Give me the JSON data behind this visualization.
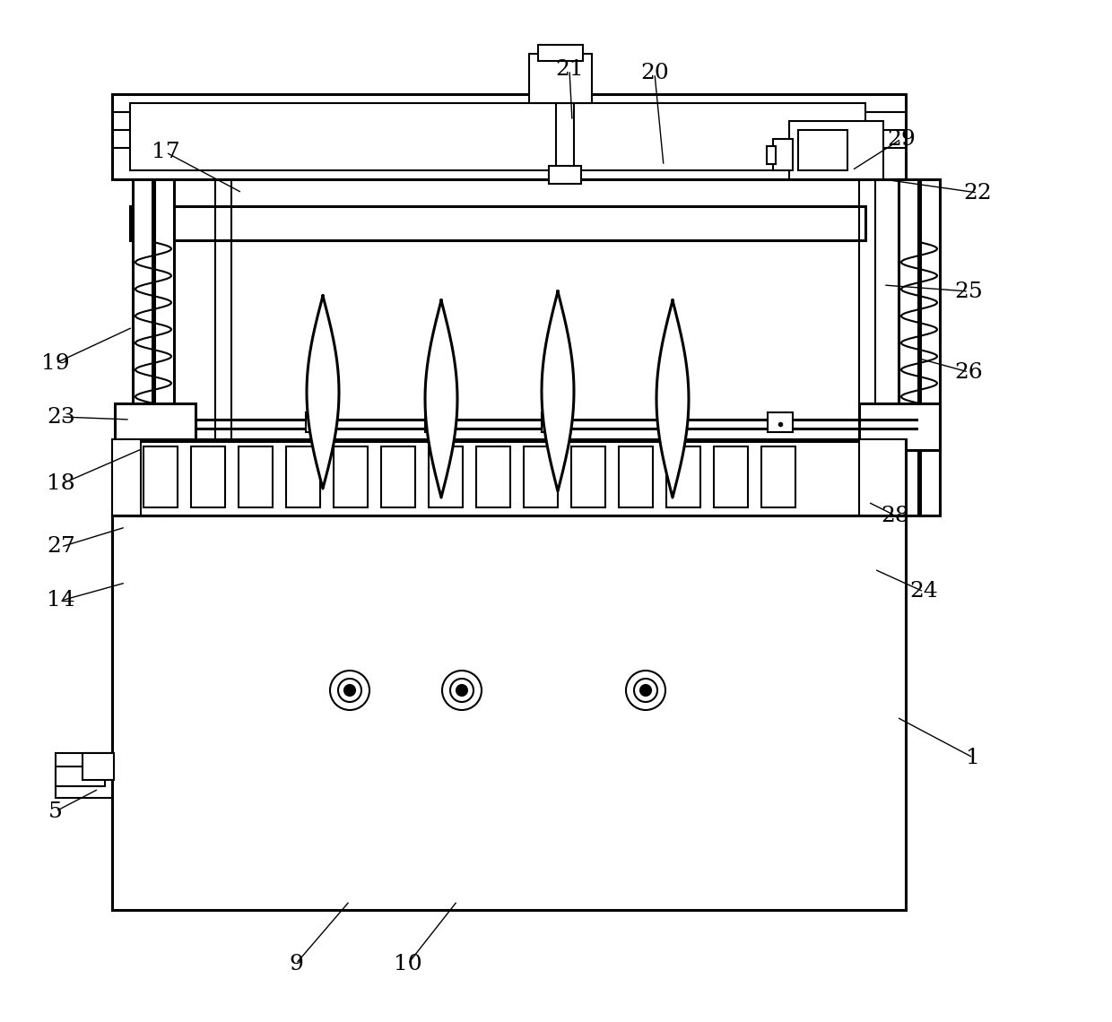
{
  "bg_color": "#ffffff",
  "line_color": "#000000",
  "lw": 1.5,
  "lw2": 2.2,
  "figsize": [
    12.4,
    11.4
  ],
  "dpi": 100,
  "labels": [
    [
      "1",
      1085,
      845,
      1000,
      800
    ],
    [
      "5",
      62,
      905,
      110,
      880
    ],
    [
      "9",
      330,
      1075,
      390,
      1005
    ],
    [
      "10",
      455,
      1075,
      510,
      1005
    ],
    [
      "14",
      68,
      670,
      140,
      650
    ],
    [
      "17",
      185,
      170,
      270,
      215
    ],
    [
      "18",
      68,
      540,
      160,
      500
    ],
    [
      "19",
      62,
      405,
      148,
      365
    ],
    [
      "20",
      730,
      82,
      740,
      185
    ],
    [
      "21",
      635,
      78,
      638,
      135
    ],
    [
      "22",
      1090,
      215,
      985,
      200
    ],
    [
      "23",
      68,
      465,
      145,
      468
    ],
    [
      "24",
      1030,
      660,
      975,
      635
    ],
    [
      "25",
      1080,
      325,
      985,
      318
    ],
    [
      "26",
      1080,
      415,
      1025,
      400
    ],
    [
      "27",
      68,
      610,
      140,
      588
    ],
    [
      "28",
      998,
      575,
      968,
      560
    ],
    [
      "29",
      1005,
      155,
      950,
      190
    ]
  ]
}
